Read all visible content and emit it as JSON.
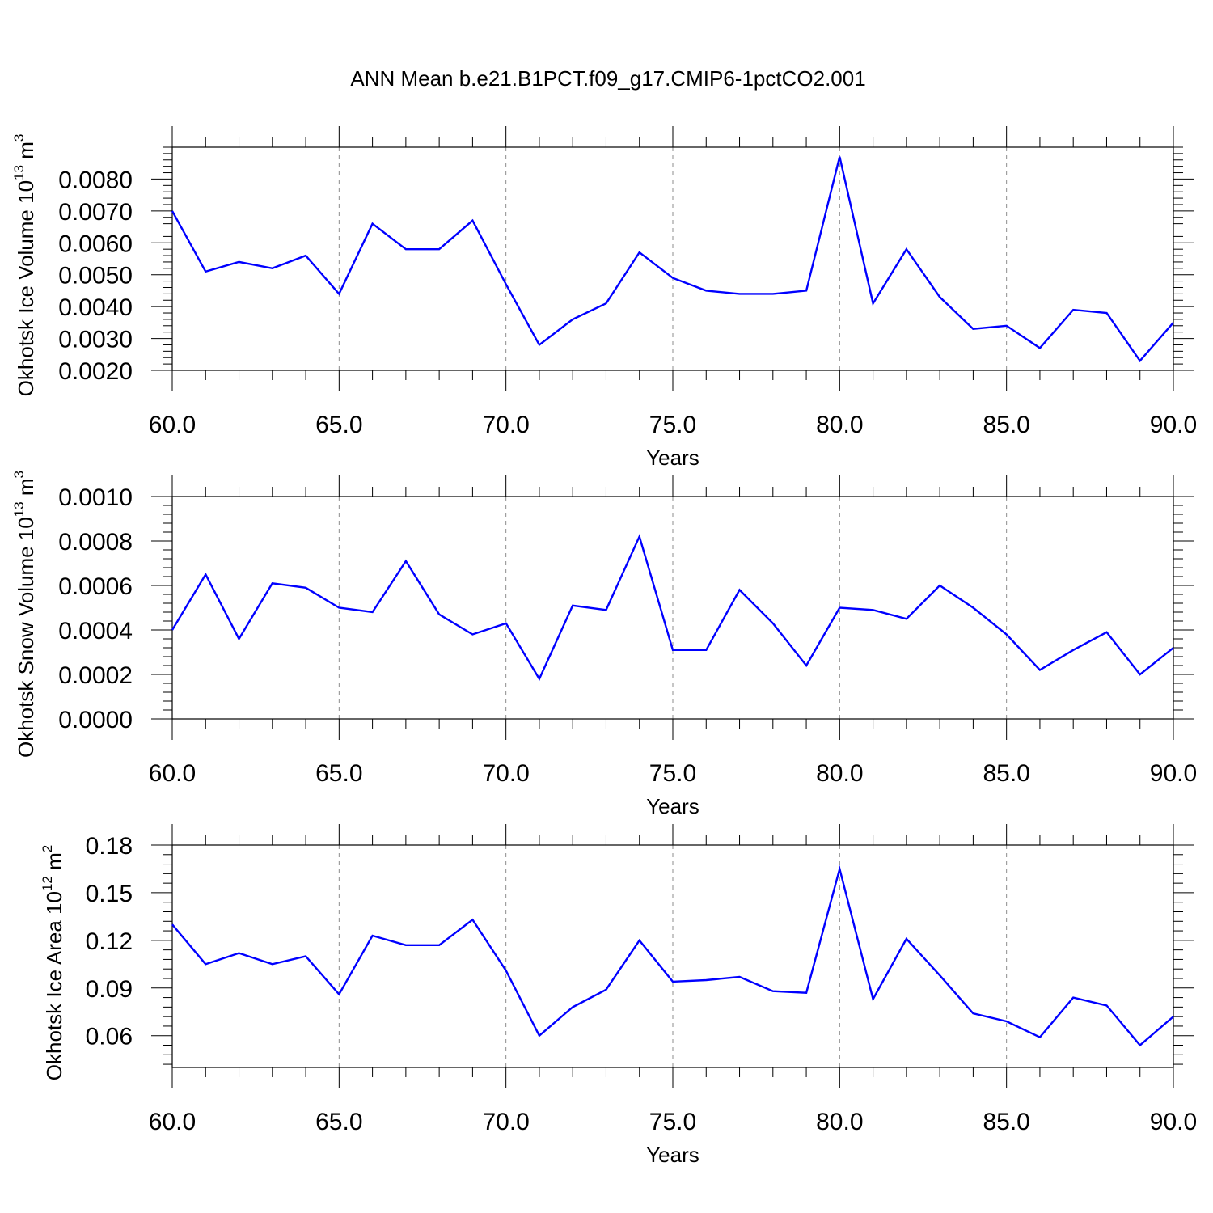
{
  "title": "ANN Mean b.e21.B1PCT.f09_g17.CMIP6-1pctCO2.001",
  "colors": {
    "line": "#0000ff",
    "axis": "#000000",
    "grid": "#8c8c8c"
  },
  "chart_data": [
    {
      "type": "line",
      "ylabel_main": "Okhotsk Ice Volume 10",
      "ylabel_exp": "13",
      "ylabel_unit": "m",
      "ylabel_unit_exp": "3",
      "xlabel": "Years",
      "xlim": [
        60,
        90
      ],
      "ylim": [
        0.002,
        0.009
      ],
      "xticks": [
        60,
        65,
        70,
        75,
        80,
        85,
        90
      ],
      "xtick_labels": [
        "60.0",
        "65.0",
        "70.0",
        "75.0",
        "80.0",
        "85.0",
        "90.0"
      ],
      "yticks": [
        0.002,
        0.003,
        0.004,
        0.005,
        0.006,
        0.007,
        0.008
      ],
      "ytick_labels": [
        "0.0020",
        "0.0030",
        "0.0040",
        "0.0050",
        "0.0060",
        "0.0070",
        "0.0080"
      ],
      "grid": "vertical dashed at major x ticks",
      "x": [
        60,
        61,
        62,
        63,
        64,
        65,
        66,
        67,
        68,
        69,
        70,
        71,
        72,
        73,
        74,
        75,
        76,
        77,
        78,
        79,
        80,
        81,
        82,
        83,
        84,
        85,
        86,
        87,
        88,
        89,
        90
      ],
      "y": [
        0.007,
        0.0051,
        0.0054,
        0.0052,
        0.0056,
        0.0044,
        0.0066,
        0.0058,
        0.0058,
        0.0067,
        0.0047,
        0.0028,
        0.0036,
        0.0041,
        0.0057,
        0.0049,
        0.0045,
        0.0044,
        0.0044,
        0.0045,
        0.0087,
        0.0041,
        0.0058,
        0.0043,
        0.0033,
        0.0034,
        0.0027,
        0.0039,
        0.0038,
        0.0023,
        0.0035
      ]
    },
    {
      "type": "line",
      "ylabel_main": "Okhotsk Snow Volume 10",
      "ylabel_exp": "13",
      "ylabel_unit": "m",
      "ylabel_unit_exp": "3",
      "xlabel": "Years",
      "xlim": [
        60,
        90
      ],
      "ylim": [
        0.0,
        0.001
      ],
      "xticks": [
        60,
        65,
        70,
        75,
        80,
        85,
        90
      ],
      "xtick_labels": [
        "60.0",
        "65.0",
        "70.0",
        "75.0",
        "80.0",
        "85.0",
        "90.0"
      ],
      "yticks": [
        0.0,
        0.0002,
        0.0004,
        0.0006,
        0.0008,
        0.001
      ],
      "ytick_labels": [
        "0.0000",
        "0.0002",
        "0.0004",
        "0.0006",
        "0.0008",
        "0.0010"
      ],
      "grid": "vertical dashed at major x ticks",
      "x": [
        60,
        61,
        62,
        63,
        64,
        65,
        66,
        67,
        68,
        69,
        70,
        71,
        72,
        73,
        74,
        75,
        76,
        77,
        78,
        79,
        80,
        81,
        82,
        83,
        84,
        85,
        86,
        87,
        88,
        89,
        90
      ],
      "y": [
        0.0004,
        0.00065,
        0.00036,
        0.00061,
        0.00059,
        0.0005,
        0.00048,
        0.00071,
        0.00047,
        0.00038,
        0.00043,
        0.00018,
        0.00051,
        0.00049,
        0.00082,
        0.00031,
        0.00031,
        0.00058,
        0.00043,
        0.00024,
        0.0005,
        0.00049,
        0.00045,
        0.0006,
        0.0005,
        0.00038,
        0.00022,
        0.00031,
        0.00039,
        0.0002,
        0.00032
      ]
    },
    {
      "type": "line",
      "ylabel_main": "Okhotsk Ice Area 10",
      "ylabel_exp": "12",
      "ylabel_unit": "m",
      "ylabel_unit_exp": "2",
      "xlabel": "Years",
      "xlim": [
        60,
        90
      ],
      "ylim": [
        0.04,
        0.18
      ],
      "xticks": [
        60,
        65,
        70,
        75,
        80,
        85,
        90
      ],
      "xtick_labels": [
        "60.0",
        "65.0",
        "70.0",
        "75.0",
        "80.0",
        "85.0",
        "90.0"
      ],
      "yticks": [
        0.06,
        0.09,
        0.12,
        0.15,
        0.18
      ],
      "ytick_labels": [
        "0.06",
        "0.09",
        "0.12",
        "0.15",
        "0.18"
      ],
      "grid": "vertical dashed at major x ticks",
      "x": [
        60,
        61,
        62,
        63,
        64,
        65,
        66,
        67,
        68,
        69,
        70,
        71,
        72,
        73,
        74,
        75,
        76,
        77,
        78,
        79,
        80,
        81,
        82,
        83,
        84,
        85,
        86,
        87,
        88,
        89,
        90
      ],
      "y": [
        0.13,
        0.105,
        0.112,
        0.105,
        0.11,
        0.086,
        0.123,
        0.117,
        0.117,
        0.133,
        0.101,
        0.06,
        0.078,
        0.089,
        0.12,
        0.094,
        0.095,
        0.097,
        0.088,
        0.087,
        0.165,
        0.083,
        0.121,
        0.098,
        0.074,
        0.069,
        0.059,
        0.084,
        0.079,
        0.054,
        0.072
      ]
    }
  ]
}
